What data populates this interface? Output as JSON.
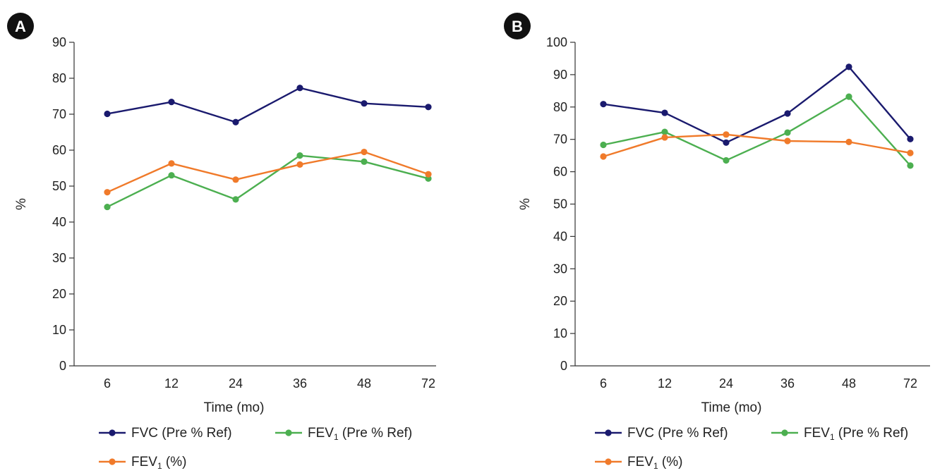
{
  "chart_data": [
    {
      "type": "line",
      "panel_label": "A",
      "categories": [
        "6",
        "12",
        "24",
        "36",
        "48",
        "72"
      ],
      "xlabel": "Time (mo)",
      "ylabel": "%",
      "ylim": [
        0,
        90
      ],
      "yticks": [
        0,
        10,
        20,
        30,
        40,
        50,
        60,
        70,
        80,
        90
      ],
      "grid": false,
      "legend_position": "bottom",
      "series": [
        {
          "name": "FVC (Pre % Ref)",
          "name_main": "FVC (Pre % Ref)",
          "name_sub": "",
          "name_tail": "",
          "color": "#1a1a6e",
          "values": [
            70.1,
            73.4,
            67.8,
            77.3,
            73.0,
            72.0
          ]
        },
        {
          "name": "FEV1 (Pre % Ref)",
          "name_main": "FEV",
          "name_sub": "1",
          "name_tail": " (Pre % Ref)",
          "color": "#4caf50",
          "values": [
            44.2,
            53.0,
            46.3,
            58.5,
            56.8,
            52.1
          ]
        },
        {
          "name": "FEV1 (%)",
          "name_main": "FEV",
          "name_sub": "1",
          "name_tail": " (%)",
          "color": "#f07a2a",
          "values": [
            48.3,
            56.3,
            51.8,
            56.0,
            59.5,
            53.3
          ]
        }
      ]
    },
    {
      "type": "line",
      "panel_label": "B",
      "categories": [
        "6",
        "12",
        "24",
        "36",
        "48",
        "72"
      ],
      "xlabel": "Time (mo)",
      "ylabel": "%",
      "ylim": [
        0,
        100
      ],
      "yticks": [
        0,
        10,
        20,
        30,
        40,
        50,
        60,
        70,
        80,
        90,
        100
      ],
      "grid": false,
      "legend_position": "bottom",
      "series": [
        {
          "name": "FVC (Pre % Ref)",
          "name_main": "FVC (Pre % Ref)",
          "name_sub": "",
          "name_tail": "",
          "color": "#1a1a6e",
          "values": [
            80.9,
            78.2,
            69.0,
            78.0,
            92.4,
            70.1
          ]
        },
        {
          "name": "FEV1 (Pre % Ref)",
          "name_main": "FEV",
          "name_sub": "1",
          "name_tail": " (Pre % Ref)",
          "color": "#4caf50",
          "values": [
            68.3,
            72.3,
            63.5,
            72.1,
            83.2,
            61.9
          ]
        },
        {
          "name": "FEV1 (%)",
          "name_main": "FEV",
          "name_sub": "1",
          "name_tail": " (%)",
          "color": "#f07a2a",
          "values": [
            64.7,
            70.6,
            71.5,
            69.5,
            69.2,
            65.8
          ]
        }
      ]
    }
  ]
}
